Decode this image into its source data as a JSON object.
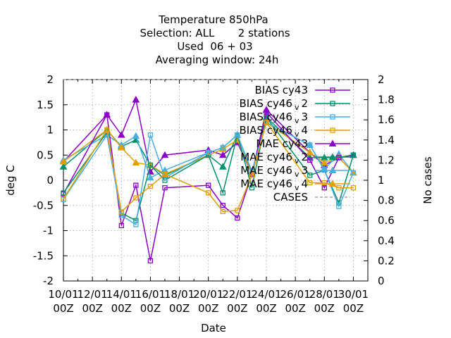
{
  "chart_data": {
    "type": "line",
    "title_lines": [
      "Temperature 850hPa",
      "Selection: ALL       2 stations",
      "Used  06 + 03",
      "Averaging window: 24h"
    ],
    "xlabel": "Date",
    "ylabel": "deg C",
    "y2label": "No cases",
    "ylim": [
      -2,
      2
    ],
    "y2lim": [
      0,
      2
    ],
    "xlim": [
      10,
      31
    ],
    "grid": true,
    "legend_position": "top-right",
    "yticks": [
      "-2",
      "-1.5",
      "-1",
      "-0.5",
      "0",
      "0.5",
      "1",
      "1.5",
      "2"
    ],
    "y2ticks": [
      "0",
      "0.2",
      "0.4",
      "0.6",
      "0.8",
      "1",
      "1.2",
      "1.4",
      "1.6",
      "1.8",
      "2"
    ],
    "xticks": [
      {
        "x": 10,
        "line1": "10/01",
        "line2": "00Z"
      },
      {
        "x": 12,
        "line1": "12/01",
        "line2": "00Z"
      },
      {
        "x": 14,
        "line1": "14/01",
        "line2": "00Z"
      },
      {
        "x": 16,
        "line1": "16/01",
        "line2": "00Z"
      },
      {
        "x": 18,
        "line1": "18/01",
        "line2": "00Z"
      },
      {
        "x": 20,
        "line1": "20/01",
        "line2": "00Z"
      },
      {
        "x": 22,
        "line1": "22/01",
        "line2": "00Z"
      },
      {
        "x": 24,
        "line1": "24/01",
        "line2": "00Z"
      },
      {
        "x": 26,
        "line1": "26/01",
        "line2": "00Z"
      },
      {
        "x": 28,
        "line1": "28/01",
        "line2": "00Z"
      },
      {
        "x": 30,
        "line1": "30/01",
        "line2": "00Z"
      }
    ],
    "series": [
      {
        "name": "BIAS cy43",
        "base": "BIAS cy43",
        "sub": "",
        "kind": "bias",
        "marker": "square",
        "color": "#8b00c8",
        "x": [
          10,
          13,
          14,
          15,
          16,
          17,
          20,
          21,
          22,
          23,
          24,
          27,
          28,
          29,
          30
        ],
        "y": [
          -0.27,
          1.3,
          -0.9,
          -0.1,
          -1.6,
          -0.15,
          -0.1,
          -0.5,
          -0.75,
          0.12,
          1.35,
          0.4,
          -0.15,
          0.45,
          0.5
        ]
      },
      {
        "name": "BIAS cy46 v 2",
        "base": "BIAS cy46",
        "sub": "v 2",
        "kind": "bias",
        "marker": "square",
        "color": "#00906e",
        "x": [
          10,
          13,
          14,
          15,
          16,
          17,
          20,
          21,
          22,
          23,
          24,
          27,
          28,
          29,
          30
        ],
        "y": [
          -0.25,
          0.95,
          -0.65,
          -0.8,
          0.3,
          0.0,
          0.5,
          -0.25,
          0.9,
          -0.15,
          1.25,
          0.1,
          0.2,
          -0.45,
          0.5
        ]
      },
      {
        "name": "BIAS cy46 v 3",
        "base": "BIAS cy46",
        "sub": "v 3",
        "kind": "bias",
        "marker": "square",
        "color": "#4aaee0",
        "x": [
          10,
          13,
          14,
          15,
          16,
          17,
          20,
          21,
          22,
          23,
          24,
          27,
          28,
          29,
          30
        ],
        "y": [
          -0.38,
          0.9,
          -0.7,
          -0.88,
          0.9,
          0.05,
          0.55,
          0.65,
          0.9,
          0.18,
          1.15,
          0.7,
          0.2,
          -0.52,
          0.15
        ]
      },
      {
        "name": "BIAS cy46 v 4",
        "base": "BIAS cy46",
        "sub": "v 4",
        "kind": "bias",
        "marker": "square",
        "color": "#e0a000",
        "x": [
          10,
          13,
          14,
          15,
          16,
          17,
          20,
          21,
          22,
          23,
          24,
          27,
          28,
          29,
          30
        ],
        "y": [
          -0.37,
          1.0,
          -0.63,
          -0.35,
          -0.12,
          0.12,
          -0.25,
          -0.62,
          -0.6,
          0.1,
          1.15,
          -0.05,
          -0.05,
          -0.15,
          -0.15
        ]
      },
      {
        "name": "MAE cy43",
        "base": "MAE cy43",
        "sub": "",
        "kind": "mae",
        "marker": "triangle",
        "color": "#8b00c8",
        "x": [
          10,
          13,
          14,
          15,
          16,
          17,
          20,
          21,
          22,
          23,
          24,
          27,
          28,
          29,
          30
        ],
        "y": [
          0.37,
          1.3,
          0.9,
          1.6,
          0.17,
          0.5,
          0.6,
          0.5,
          0.75,
          0.12,
          1.4,
          0.55,
          0.3,
          0.45,
          0.5
        ]
      },
      {
        "name": "MAE cy46 v 2",
        "base": "MAE cy46",
        "sub": "v 2",
        "kind": "mae",
        "marker": "triangle",
        "color": "#00906e",
        "x": [
          10,
          13,
          14,
          15,
          16,
          17,
          20,
          21,
          22,
          23,
          24,
          27,
          28,
          29,
          30
        ],
        "y": [
          0.27,
          1.0,
          0.67,
          0.8,
          0.3,
          0.1,
          0.5,
          0.27,
          0.9,
          0.15,
          1.25,
          0.45,
          0.45,
          0.45,
          0.5
        ]
      },
      {
        "name": "MAE cy46 v 3",
        "base": "MAE cy46",
        "sub": "v 3",
        "kind": "mae",
        "marker": "triangle",
        "color": "#4aaee0",
        "x": [
          10,
          13,
          14,
          15,
          16,
          17,
          20,
          21,
          22,
          23,
          24,
          27,
          28,
          29,
          30
        ],
        "y": [
          0.4,
          0.9,
          0.7,
          0.88,
          0.05,
          0.2,
          0.55,
          0.65,
          0.9,
          0.18,
          1.15,
          0.7,
          0.22,
          0.52,
          0.15
        ]
      },
      {
        "name": "MAE cy46 v 4",
        "base": "MAE cy46",
        "sub": "v 4",
        "kind": "mae",
        "marker": "triangle",
        "color": "#e0a000",
        "x": [
          10,
          13,
          14,
          15,
          16,
          17,
          20,
          21,
          22,
          23,
          24,
          27,
          28,
          29,
          30
        ],
        "y": [
          0.37,
          1.0,
          0.65,
          0.35,
          0.3,
          0.12,
          0.5,
          0.62,
          0.8,
          0.12,
          1.15,
          0.55,
          0.35,
          0.45,
          0.15
        ]
      },
      {
        "name": "CASES",
        "base": "CASES",
        "sub": "",
        "kind": "cases",
        "marker": "none",
        "color": "#909090",
        "axis": "y2",
        "x": [
          10,
          13,
          14,
          15,
          16,
          17,
          20,
          21,
          22,
          23,
          24,
          27,
          28,
          29,
          30
        ],
        "y": [
          2,
          2,
          2,
          2,
          2,
          2,
          2,
          2,
          2,
          2,
          2,
          2,
          2,
          2,
          2
        ]
      }
    ]
  }
}
